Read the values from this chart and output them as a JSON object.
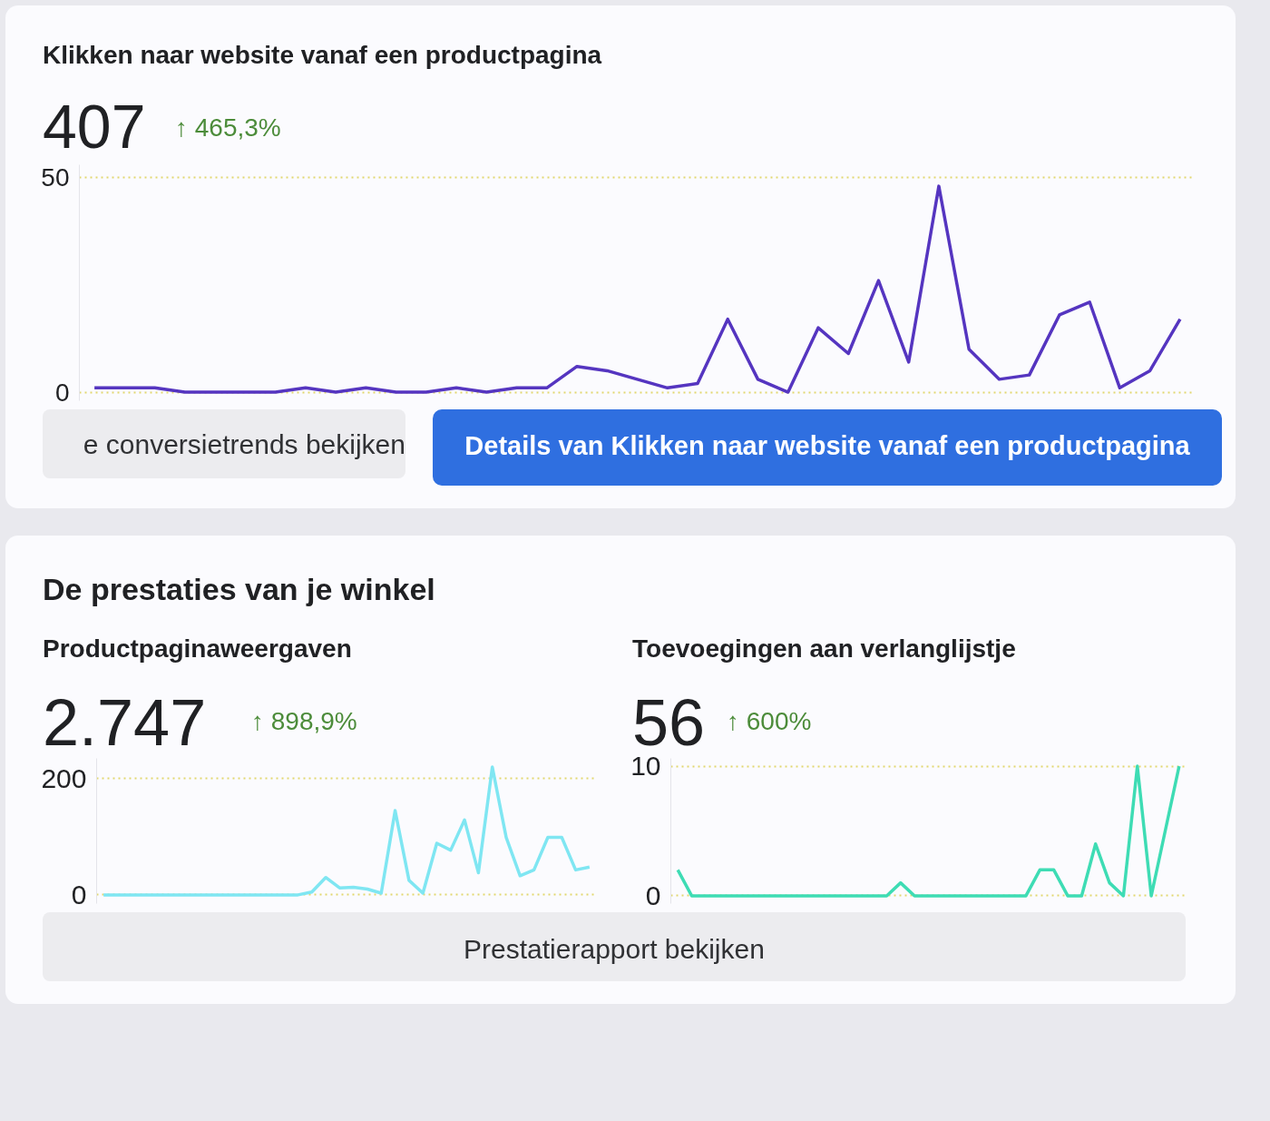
{
  "chart_data": [
    {
      "type": "line",
      "title": "Klikken naar website vanaf een productpagina",
      "subtitle": "407",
      "annotations": [
        "↑ 465,3%",
        "e conversietrends bekijken",
        "Details van Klikken naar website vanaf een productpagina"
      ],
      "categories": [
        null,
        null,
        null,
        null,
        null,
        null,
        null,
        null,
        null,
        null,
        null,
        null,
        null,
        null,
        null,
        null,
        null,
        null,
        null,
        null,
        null,
        null,
        null,
        null,
        null,
        null,
        null,
        null,
        null,
        null,
        null,
        null,
        null,
        null,
        null,
        null,
        null
      ],
      "series": [
        {
          "color": "#5535c0",
          "values": [
            1,
            1,
            1,
            0,
            0,
            0,
            0,
            1,
            0,
            1,
            0,
            0,
            1,
            0,
            1,
            1,
            6,
            5,
            3,
            1,
            2,
            17,
            3,
            0,
            15,
            9,
            26,
            7,
            48,
            10,
            3,
            4,
            18,
            21,
            1,
            5,
            17
          ]
        }
      ],
      "ylim": [
        -2,
        53
      ],
      "yticks": [
        0,
        50
      ],
      "grid": "y",
      "tick_labels": "y"
    },
    {
      "type": "line",
      "title": "Productpaginaweergaven",
      "subtitle": "2.747",
      "annotations": [
        "De prestaties van je winkel",
        "↑ 898,9%",
        "Prestatierapport bekijken"
      ],
      "categories": [
        null,
        null,
        null,
        null,
        null,
        null,
        null,
        null,
        null,
        null,
        null,
        null,
        null,
        null,
        null,
        null,
        null,
        null,
        null,
        null,
        null,
        null,
        null,
        null,
        null,
        null,
        null,
        null,
        null,
        null,
        null,
        null,
        null,
        null,
        null,
        null
      ],
      "series": [
        {
          "color": "#7fe6f2",
          "values": [
            0,
            0,
            0,
            0,
            0,
            0,
            0,
            0,
            0,
            0,
            0,
            0,
            0,
            0,
            0,
            5,
            30,
            12,
            13,
            10,
            3,
            145,
            25,
            3,
            89,
            77,
            129,
            38,
            220,
            99,
            33,
            43,
            99,
            99,
            43,
            48
          ]
        }
      ],
      "ylim": [
        -15,
        235
      ],
      "yticks": [
        0,
        200
      ],
      "grid": "y",
      "tick_labels": "y"
    },
    {
      "type": "line",
      "title": "Toevoegingen aan verlanglijstje",
      "subtitle": "56",
      "annotations": [
        "↑ 600%"
      ],
      "categories": [
        null,
        null,
        null,
        null,
        null,
        null,
        null,
        null,
        null,
        null,
        null,
        null,
        null,
        null,
        null,
        null,
        null,
        null,
        null,
        null,
        null,
        null,
        null,
        null,
        null,
        null,
        null,
        null,
        null,
        null,
        null,
        null,
        null,
        null,
        null,
        null,
        null
      ],
      "series": [
        {
          "color": "#3edcb4",
          "values": [
            2,
            0,
            0,
            0,
            0,
            0,
            0,
            0,
            0,
            0,
            0,
            0,
            0,
            0,
            0,
            0,
            1,
            0,
            0,
            0,
            0,
            0,
            0,
            0,
            0,
            0,
            2,
            2,
            0,
            0,
            4,
            1,
            0,
            10,
            0,
            5,
            10
          ]
        }
      ],
      "ylim": [
        -0.6,
        10.6
      ],
      "yticks": [
        0,
        10
      ],
      "grid": "y",
      "tick_labels": "y"
    }
  ]
}
